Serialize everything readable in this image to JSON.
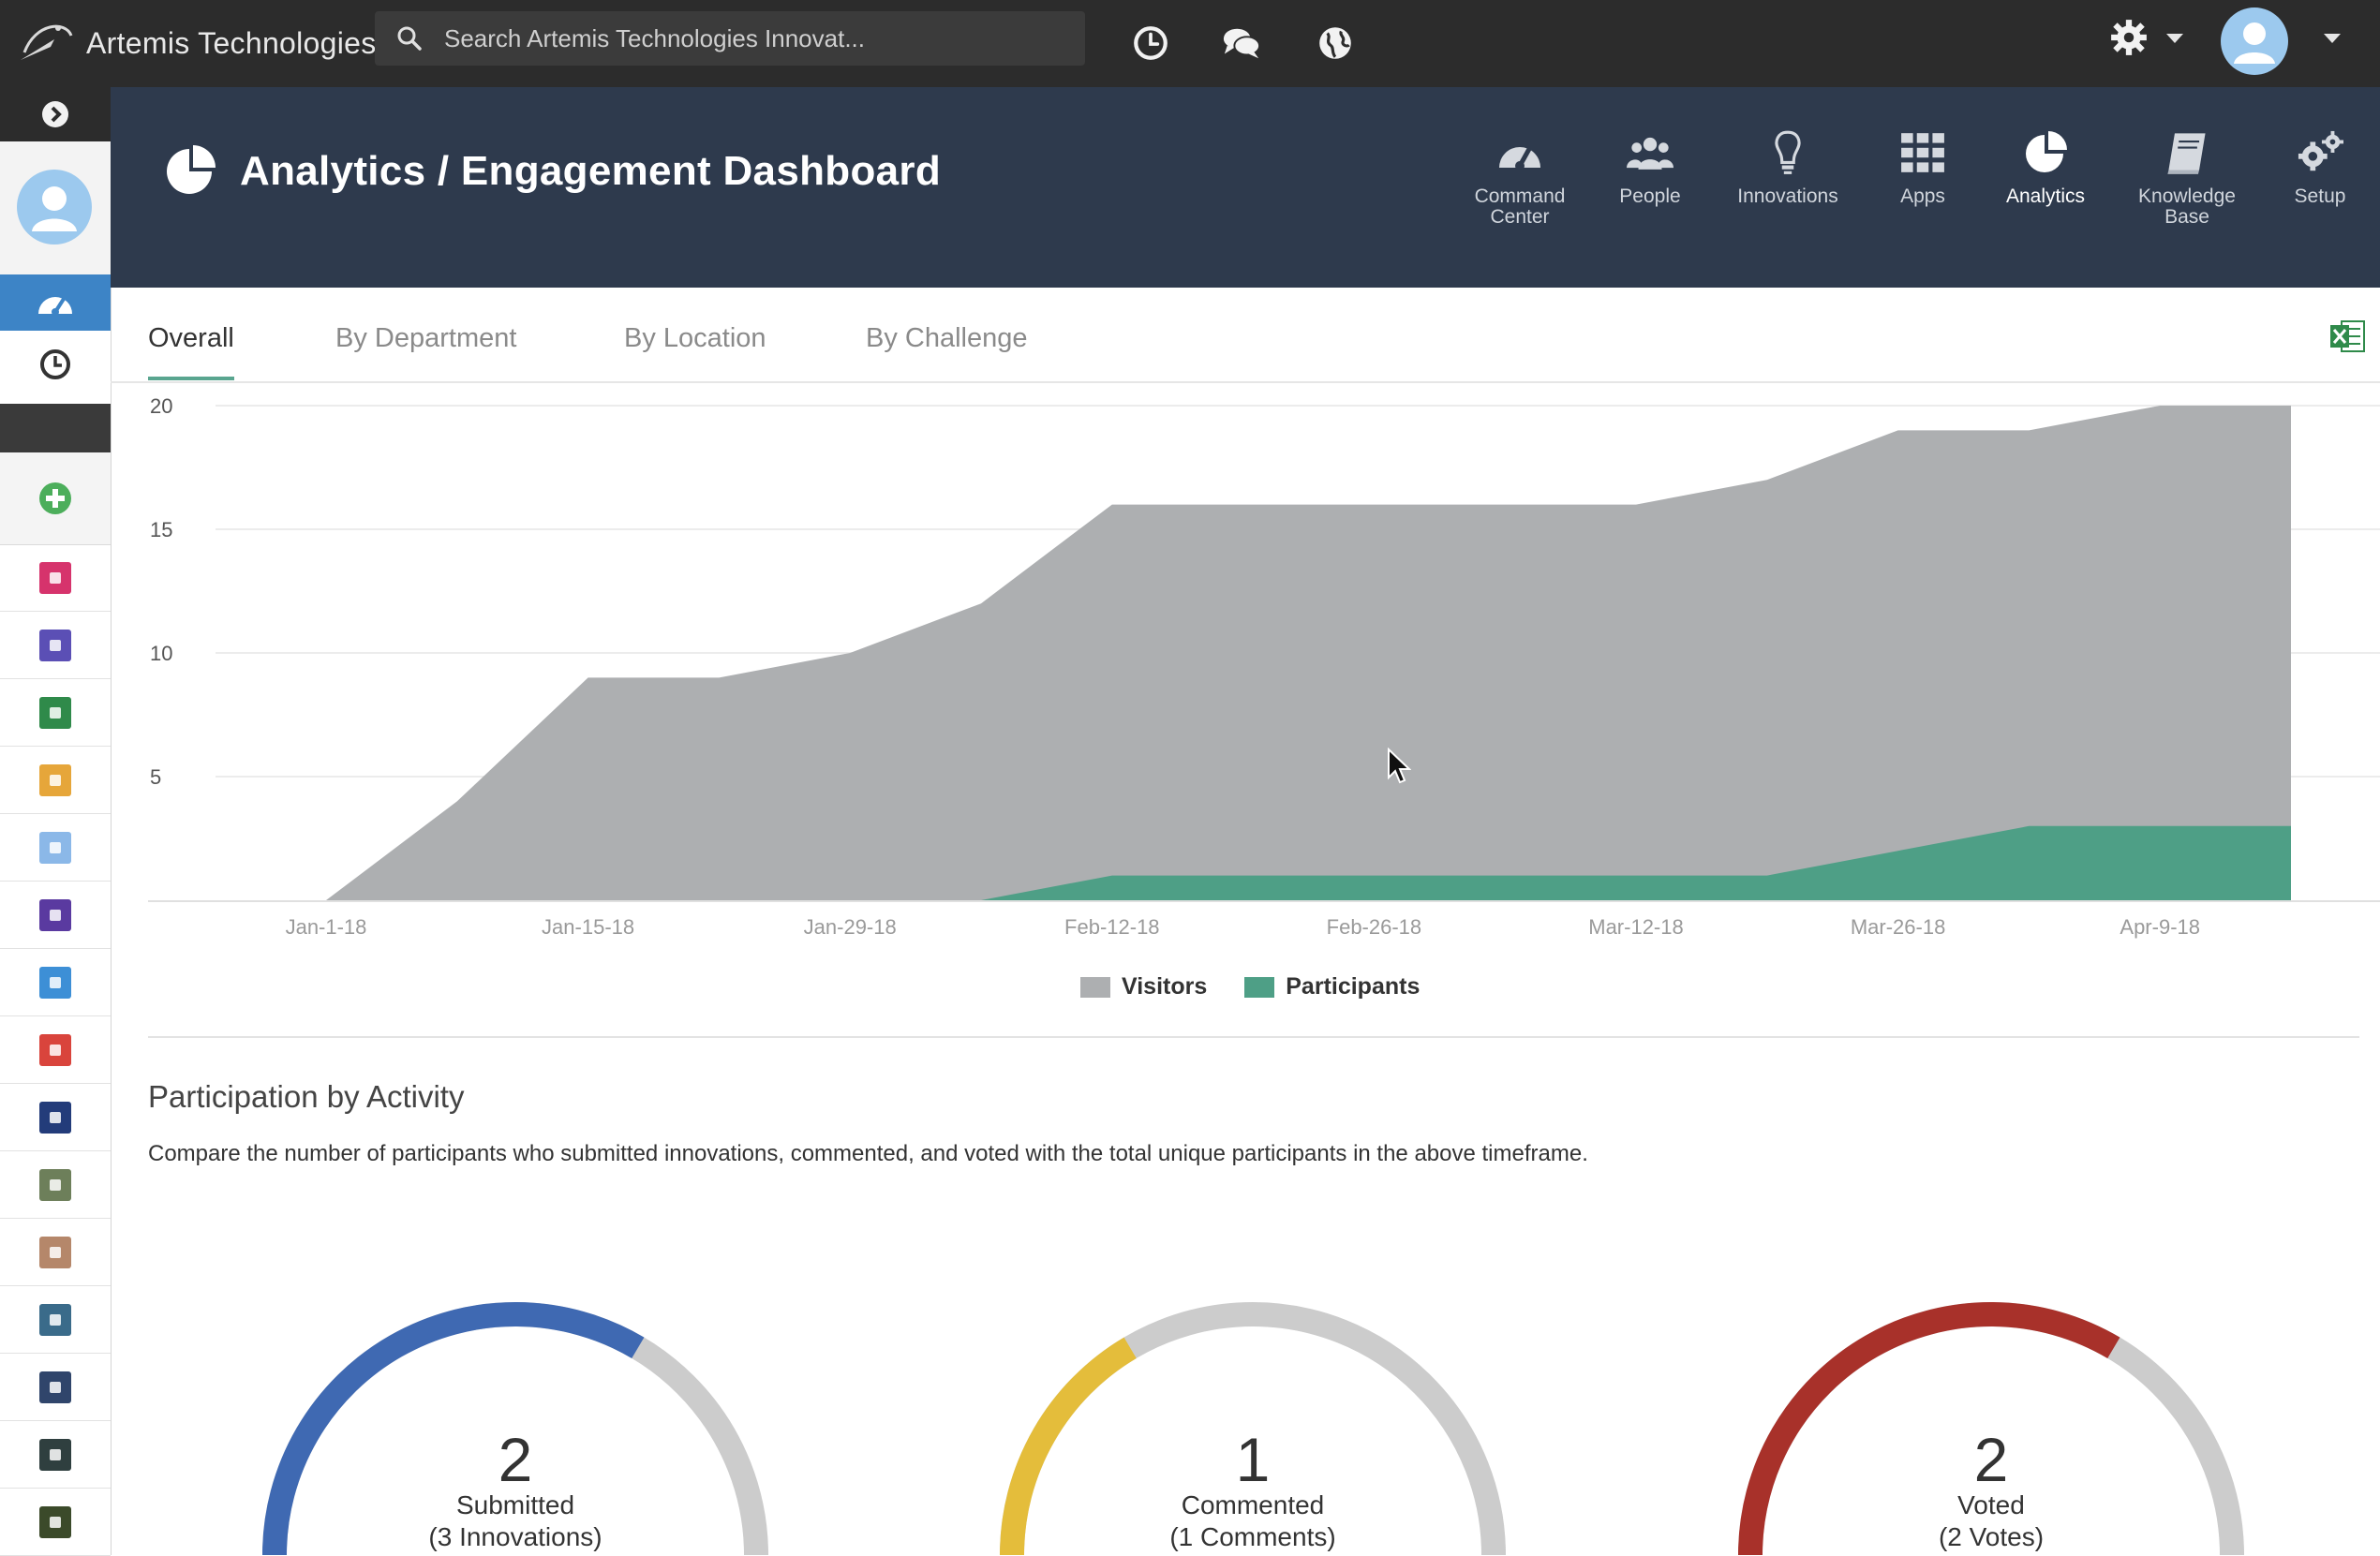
{
  "app": {
    "brand_name": "Artemis Technologies",
    "search_placeholder": "Search Artemis Technologies Innovat..."
  },
  "topbar": {
    "icons": [
      "history-icon",
      "chat-icon",
      "globe-icon",
      "gear-icon",
      "user-avatar"
    ]
  },
  "header": {
    "title": "Analytics / Engagement Dashboard",
    "nav": [
      {
        "label_line1": "Command",
        "label_line2": "Center",
        "icon": "speedometer-icon"
      },
      {
        "label_line1": "People",
        "label_line2": "",
        "icon": "people-icon"
      },
      {
        "label_line1": "Innovations",
        "label_line2": "",
        "icon": "lightbulb-icon"
      },
      {
        "label_line1": "Apps",
        "label_line2": "",
        "icon": "grid-icon"
      },
      {
        "label_line1": "Analytics",
        "label_line2": "",
        "icon": "pie-chart-icon"
      },
      {
        "label_line1": "Knowledge",
        "label_line2": "Base",
        "icon": "book-icon"
      },
      {
        "label_line1": "Setup",
        "label_line2": "",
        "icon": "gears-icon"
      }
    ],
    "active_nav": "Analytics"
  },
  "tabs": {
    "items": [
      "Overall",
      "By Department",
      "By Location",
      "By Challenge"
    ],
    "active": "Overall"
  },
  "chart_data": {
    "type": "area",
    "x": [
      "Jan-1-18",
      "Jan-8-18",
      "Jan-15-18",
      "Jan-22-18",
      "Jan-29-18",
      "Feb-5-18",
      "Feb-12-18",
      "Feb-19-18",
      "Feb-26-18",
      "Mar-5-18",
      "Mar-12-18",
      "Mar-19-18",
      "Mar-26-18",
      "Apr-2-18",
      "Apr-9-18",
      "Apr-16-18"
    ],
    "x_tick_labels": [
      "Jan-1-18",
      "Jan-15-18",
      "Jan-29-18",
      "Feb-12-18",
      "Feb-26-18",
      "Mar-12-18",
      "Mar-26-18",
      "Apr-9-18"
    ],
    "series": [
      {
        "name": "Visitors",
        "color": "#adafb1",
        "values": [
          0,
          4,
          9,
          9,
          10,
          12,
          16,
          16,
          16,
          16,
          16,
          17,
          19,
          19,
          20,
          20
        ]
      },
      {
        "name": "Participants",
        "color": "#4e9f86",
        "values": [
          0,
          0,
          0,
          0,
          0,
          0,
          1,
          1,
          1,
          1,
          1,
          1,
          2,
          3,
          3,
          3
        ]
      }
    ],
    "y_ticks": [
      "5",
      "10",
      "15",
      "20"
    ],
    "ylim": [
      0,
      20
    ],
    "grid": true,
    "legend_position": "bottom-center"
  },
  "participation": {
    "title": "Participation by Activity",
    "description": "Compare the number of participants who submitted innovations, commented, and voted with the total unique participants in the above timeframe.",
    "gauges": [
      {
        "value": "2",
        "label": "Submitted",
        "sub": "(3 Innovations)",
        "color": "#3f69b2",
        "fraction": 0.67
      },
      {
        "value": "1",
        "label": "Commented",
        "sub": "(1 Comments)",
        "color": "#e4bd3b",
        "fraction": 0.33
      },
      {
        "value": "2",
        "label": "Voted",
        "sub": "(2 Votes)",
        "color": "#a8312a",
        "fraction": 0.67
      }
    ],
    "track_color": "#cccccc"
  },
  "sidebar": {
    "tiles": [
      "#d6336c",
      "#5b4fb5",
      "#2f8a4a",
      "#e6a63a",
      "#8bb8e8",
      "#5a3aa0",
      "#3d8fd6",
      "#d9443c",
      "#233c7a",
      "#6d7f5a",
      "#b5876a",
      "#3a6b8a",
      "#30456b",
      "#2f3f3f",
      "#3b4a2a"
    ]
  }
}
